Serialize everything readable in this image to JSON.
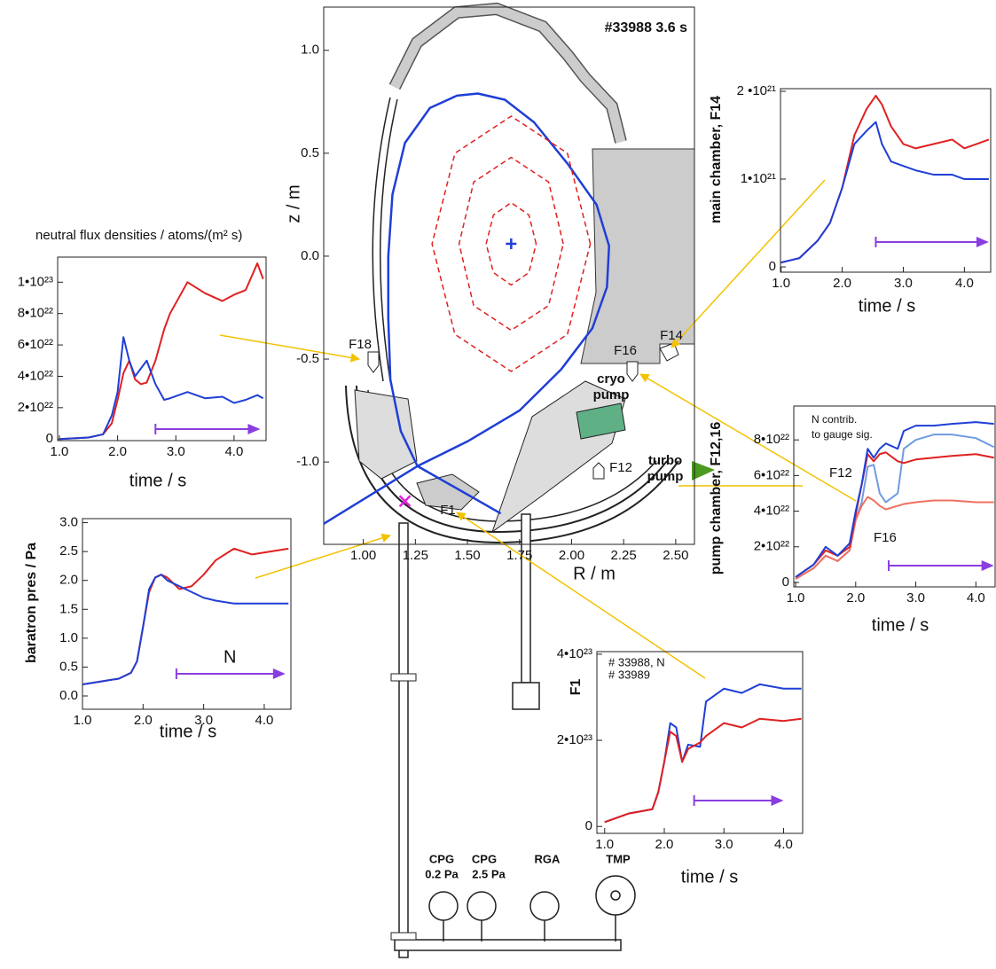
{
  "chart_data": [
    {
      "type": "line",
      "title": "#33988 3.6 s",
      "xlabel": "R / m",
      "ylabel": "z / m",
      "xlim": [
        0.81,
        2.59
      ],
      "ylim": [
        -1.4,
        1.21
      ],
      "xticks": [
        {
          "value": 1,
          "label": "1.00"
        },
        1.25,
        {
          "value": 1.5,
          "label": "1.50"
        },
        1.75,
        {
          "value": 2,
          "label": "2.00"
        },
        2.25,
        {
          "value": 2.5,
          "label": "2.50"
        }
      ],
      "yticks": [
        {
          "value": 1,
          "label": "1.0"
        },
        0.5,
        {
          "value": 0,
          "label": "0.0"
        },
        -0.5,
        {
          "value": -1,
          "label": "-1.0"
        }
      ],
      "series": [
        {
          "color": "#1f3fd6",
          "x": [
            1.26,
            1.18,
            1.13,
            1.12,
            1.12,
            1.14,
            1.2,
            1.32,
            1.45,
            1.55,
            1.68,
            1.82,
            1.98,
            2.12,
            2.18,
            2.17,
            2.1,
            1.95,
            1.75,
            1.5,
            1.26,
            0.81
          ],
          "values": [
            -1.02,
            -0.85,
            -0.6,
            -0.3,
            0,
            0.3,
            0.55,
            0.72,
            0.78,
            0.79,
            0.76,
            0.65,
            0.45,
            0.25,
            0.05,
            -0.15,
            -0.35,
            -0.55,
            -0.75,
            -0.9,
            -1.02,
            -1.3
          ]
        },
        {
          "color": "#1f3fd6",
          "x": [
            1.26,
            1.66
          ],
          "values": [
            -1.02,
            -1.25
          ]
        },
        {
          "color": "#e02020",
          "dash": true,
          "x": [
            1.83,
            1.795,
            1.71,
            1.625,
            1.59,
            1.625,
            1.71,
            1.795,
            1.83
          ],
          "values": [
            0.06,
            0.2,
            0.26,
            0.2,
            0.06,
            -0.08,
            -0.14,
            -0.08,
            0.06
          ]
        },
        {
          "color": "#e02020",
          "dash": true,
          "x": [
            1.96,
            1.89,
            1.71,
            1.53,
            1.46,
            1.53,
            1.71,
            1.89,
            1.96
          ],
          "values": [
            0.06,
            0.36,
            0.48,
            0.36,
            0.06,
            -0.24,
            -0.36,
            -0.24,
            0.06
          ]
        },
        {
          "color": "#e02020",
          "dash": true,
          "x": [
            2.09,
            1.98,
            1.71,
            1.44,
            1.33,
            1.44,
            1.71,
            1.98,
            2.09
          ],
          "values": [
            0.06,
            0.5,
            0.68,
            0.5,
            0.06,
            -0.38,
            -0.56,
            -0.38,
            0.06
          ]
        },
        {
          "color": "#1f3fd6",
          "marker": "plus",
          "x": [
            1.71
          ],
          "values": [
            0.06
          ]
        },
        {
          "color": "#e020e0",
          "marker": "cross",
          "x": [
            1.2
          ],
          "values": [
            -1.19
          ]
        }
      ]
    },
    {
      "type": "line",
      "title": "neutral flux densities /  atoms/(m² s)",
      "xlabel": "time / s",
      "xlim": [
        0.97,
        4.55
      ],
      "ylim": [
        -1e+21,
        1.16e+23
      ],
      "xticks": [
        {
          "value": 1,
          "label": "1.0"
        },
        {
          "value": 2,
          "label": "2.0"
        },
        {
          "value": 3,
          "label": "3.0"
        },
        {
          "value": 4,
          "label": "4.0"
        }
      ],
      "yticks": [
        0,
        {
          "value": 2e+22,
          "label": "2•10²²"
        },
        {
          "value": 4e+22,
          "label": "4•10²²"
        },
        {
          "value": 6e+22,
          "label": "6•10²²"
        },
        {
          "value": 8e+22,
          "label": "8•10²²"
        },
        {
          "value": 1e+23,
          "label": "1•10²³"
        }
      ],
      "x": [
        1.0,
        1.5,
        1.75,
        1.9,
        2.0,
        2.1,
        2.2,
        2.3,
        2.4,
        2.5,
        2.65,
        2.8,
        2.9,
        3.2,
        3.5,
        3.8,
        4.0,
        4.2,
        4.4,
        4.5
      ],
      "series": [
        {
          "color": "#e02020",
          "values": [
            0,
            1e+21,
            3e+21,
            1e+22,
            2.5e+22,
            4.2e+22,
            5e+22,
            3.8e+22,
            3.5e+22,
            3.6e+22,
            5e+22,
            7e+22,
            8e+22,
            1e+23,
            9.3e+22,
            8.8e+22,
            9.2e+22,
            9.5e+22,
            1.12e+23,
            1.02e+23
          ]
        },
        {
          "color": "#1f3fd6",
          "values": [
            0,
            1e+21,
            3e+21,
            1.5e+22,
            3e+22,
            6.5e+22,
            5e+22,
            4e+22,
            4.5e+22,
            5e+22,
            3.5e+22,
            2.5e+22,
            2.6e+22,
            3e+22,
            2.6e+22,
            2.7e+22,
            2.3e+22,
            2.5e+22,
            2.8e+22,
            2.6e+22
          ]
        }
      ],
      "span": [
        2.65,
        4.45
      ],
      "span_color": "#8a3ee0"
    },
    {
      "type": "line",
      "xlabel": "time / s",
      "ylabel": "main chamber, F14",
      "xlim": [
        0.99,
        4.43
      ],
      "ylim": [
        -6e+19,
        2.03e+21
      ],
      "xticks": [
        {
          "value": 1,
          "label": "1.0"
        },
        {
          "value": 2,
          "label": "2.0"
        },
        {
          "value": 3,
          "label": "3.0"
        },
        {
          "value": 4,
          "label": "4.0"
        }
      ],
      "yticks": [
        0,
        {
          "value": 1e+21,
          "label": "1•10²¹"
        },
        {
          "value": 2e+21,
          "label": "2 •10²¹"
        }
      ],
      "x": [
        1.0,
        1.3,
        1.6,
        1.8,
        2.0,
        2.2,
        2.4,
        2.55,
        2.65,
        2.8,
        3.0,
        3.2,
        3.5,
        3.8,
        4.0,
        4.2,
        4.4
      ],
      "series": [
        {
          "color": "#e02020",
          "values": [
            5e+19,
            1e+20,
            3e+20,
            5e+20,
            9e+20,
            1.5e+21,
            1.8e+21,
            1.95e+21,
            1.85e+21,
            1.6e+21,
            1.4e+21,
            1.35e+21,
            1.4e+21,
            1.45e+21,
            1.35e+21,
            1.4e+21,
            1.45e+21
          ]
        },
        {
          "color": "#1f3fd6",
          "values": [
            5e+19,
            1e+20,
            3e+20,
            5e+20,
            9e+20,
            1.4e+21,
            1.55e+21,
            1.65e+21,
            1.4e+21,
            1.2e+21,
            1.15e+21,
            1.1e+21,
            1.05e+21,
            1.05e+21,
            1e+21,
            1e+21,
            1e+21
          ]
        }
      ],
      "span": [
        2.55,
        4.4
      ],
      "span_color": "#8a3ee0"
    },
    {
      "type": "line",
      "xlabel": "time / s",
      "ylabel": "pump chamber, F12,16",
      "xlim": [
        0.97,
        4.32
      ],
      "ylim": [
        -2.5e+21,
        9.9e+22
      ],
      "xticks": [
        {
          "value": 1,
          "label": "1.0"
        },
        {
          "value": 2,
          "label": "2.0"
        },
        {
          "value": 3,
          "label": "3.0"
        },
        {
          "value": 4,
          "label": "4.0"
        }
      ],
      "yticks": [
        0,
        {
          "value": 2e+22,
          "label": "2•10²²"
        },
        {
          "value": 4e+22,
          "label": "4•10²²"
        },
        {
          "value": 6e+22,
          "label": "6•10²²"
        },
        {
          "value": 8e+22,
          "label": "8•10²²"
        }
      ],
      "x": [
        1.0,
        1.3,
        1.5,
        1.7,
        1.9,
        2.0,
        2.1,
        2.2,
        2.3,
        2.4,
        2.5,
        2.7,
        2.8,
        3.0,
        3.3,
        3.6,
        4.0,
        4.3
      ],
      "series": [
        {
          "color": "#6f9be0",
          "values": [
            2e+21,
            8e+21,
            1.5e+22,
            1.2e+22,
            1.8e+22,
            3.5e+22,
            4.5e+22,
            6.5e+22,
            6.6e+22,
            5e+22,
            4.5e+22,
            5e+22,
            7.5e+22,
            8e+22,
            8.3e+22,
            8.3e+22,
            8.1e+22,
            7.6e+22
          ]
        },
        {
          "color": "#f07060",
          "values": [
            2e+21,
            8e+21,
            1.5e+22,
            1.2e+22,
            1.8e+22,
            3.5e+22,
            4.3e+22,
            4.8e+22,
            4.6e+22,
            4.3e+22,
            4.1e+22,
            4.3e+22,
            4.4e+22,
            4.5e+22,
            4.6e+22,
            4.6e+22,
            4.5e+22,
            4.5e+22
          ]
        },
        {
          "color": "#e02020",
          "values": [
            3e+21,
            1e+22,
            1.8e+22,
            1.5e+22,
            2e+22,
            3.8e+22,
            5.5e+22,
            7.2e+22,
            6.8e+22,
            7.2e+22,
            7.3e+22,
            6.8e+22,
            6.7e+22,
            6.9e+22,
            7e+22,
            7.1e+22,
            7.2e+22,
            7e+22
          ]
        },
        {
          "color": "#1f3fd6",
          "values": [
            3e+21,
            1e+22,
            2e+22,
            1.5e+22,
            2.2e+22,
            4e+22,
            5.5e+22,
            7.5e+22,
            7e+22,
            7.5e+22,
            7.8e+22,
            7.5e+22,
            8.5e+22,
            8.8e+22,
            8.8e+22,
            8.9e+22,
            9e+22,
            8.9e+22
          ]
        }
      ],
      "annotations": [
        "N contrib.",
        "to gauge sig.",
        "F12",
        "F16"
      ],
      "span": [
        2.55,
        4.3
      ],
      "span_color": "#8a3ee0"
    },
    {
      "type": "line",
      "xlabel": "time / s",
      "ylabel": "baratron pres / Pa",
      "ylabel_color": "#e020e0",
      "xlim": [
        1.0,
        4.44
      ],
      "ylim": [
        -0.23,
        3.07
      ],
      "xticks": [
        {
          "value": 1,
          "label": "1.0"
        },
        {
          "value": 2,
          "label": "2.0"
        },
        {
          "value": 3,
          "label": "3.0"
        },
        {
          "value": 4,
          "label": "4.0"
        }
      ],
      "yticks": [
        {
          "value": 0,
          "label": "0.0"
        },
        0.5,
        {
          "value": 1,
          "label": "1.0"
        },
        1.5,
        {
          "value": 2,
          "label": "2.0"
        },
        2.5,
        {
          "value": 3,
          "label": "3.0"
        }
      ],
      "x": [
        1.0,
        1.3,
        1.6,
        1.8,
        1.9,
        2.0,
        2.1,
        2.2,
        2.3,
        2.4,
        2.6,
        2.8,
        3.0,
        3.2,
        3.5,
        3.8,
        4.1,
        4.4
      ],
      "series": [
        {
          "color": "#e02020",
          "values": [
            0.2,
            0.25,
            0.3,
            0.4,
            0.6,
            1.2,
            1.8,
            2.05,
            2.1,
            2.05,
            1.85,
            1.9,
            2.1,
            2.35,
            2.55,
            2.45,
            2.5,
            2.55
          ]
        },
        {
          "color": "#1f3fd6",
          "values": [
            0.2,
            0.25,
            0.3,
            0.4,
            0.6,
            1.2,
            1.85,
            2.05,
            2.1,
            2.0,
            1.9,
            1.8,
            1.7,
            1.65,
            1.6,
            1.6,
            1.6,
            1.6
          ]
        }
      ],
      "annotations": [
        "N"
      ],
      "span": [
        2.55,
        4.35
      ],
      "span_color": "#8a3ee0"
    },
    {
      "type": "line",
      "xlabel": "time / s",
      "ylabel": "F1",
      "xlim": [
        0.87,
        4.32
      ],
      "ylim": [
        -1.6e+22,
        4.06e+23
      ],
      "xticks": [
        {
          "value": 1,
          "label": "1.0"
        },
        {
          "value": 2,
          "label": "2.0"
        },
        {
          "value": 3,
          "label": "3.0"
        },
        {
          "value": 4,
          "label": "4.0"
        }
      ],
      "yticks": [
        0,
        {
          "value": 2e+23,
          "label": "2•10²³"
        },
        {
          "value": 4e+23,
          "label": "4•10²³"
        }
      ],
      "x": [
        1.0,
        1.2,
        1.4,
        1.6,
        1.8,
        1.9,
        2.0,
        2.1,
        2.2,
        2.3,
        2.4,
        2.6,
        2.7,
        3.0,
        3.3,
        3.6,
        4.0,
        4.3
      ],
      "series": [
        {
          "name": "# 33988, N",
          "color": "#1f3fd6",
          "values": [
            1e+22,
            2e+22,
            3e+22,
            3.5e+22,
            4e+22,
            8e+22,
            1.5e+23,
            2.4e+23,
            2.3e+23,
            1.5e+23,
            1.9e+23,
            1.85e+23,
            2.9e+23,
            3.2e+23,
            3.1e+23,
            3.3e+23,
            3.2e+23,
            3.2e+23
          ]
        },
        {
          "name": "# 33989",
          "color": "#e02020",
          "values": [
            1e+22,
            2e+22,
            3e+22,
            3.5e+22,
            4e+22,
            8e+22,
            1.5e+23,
            2.2e+23,
            2.1e+23,
            1.5e+23,
            1.8e+23,
            1.95e+23,
            2.1e+23,
            2.4e+23,
            2.3e+23,
            2.5e+23,
            2.45e+23,
            2.5e+23
          ]
        }
      ],
      "span": [
        2.5,
        4.0
      ],
      "span_color": "#8a3ee0"
    }
  ],
  "diagram": {
    "labels": [
      "F18",
      "F16",
      "F14",
      "F12",
      "F1",
      "cryo",
      "pump",
      "turbo",
      "pump",
      "CPG",
      "0.2 Pa",
      "CPG",
      "2.5 Pa",
      "RGA",
      "TMP"
    ]
  }
}
